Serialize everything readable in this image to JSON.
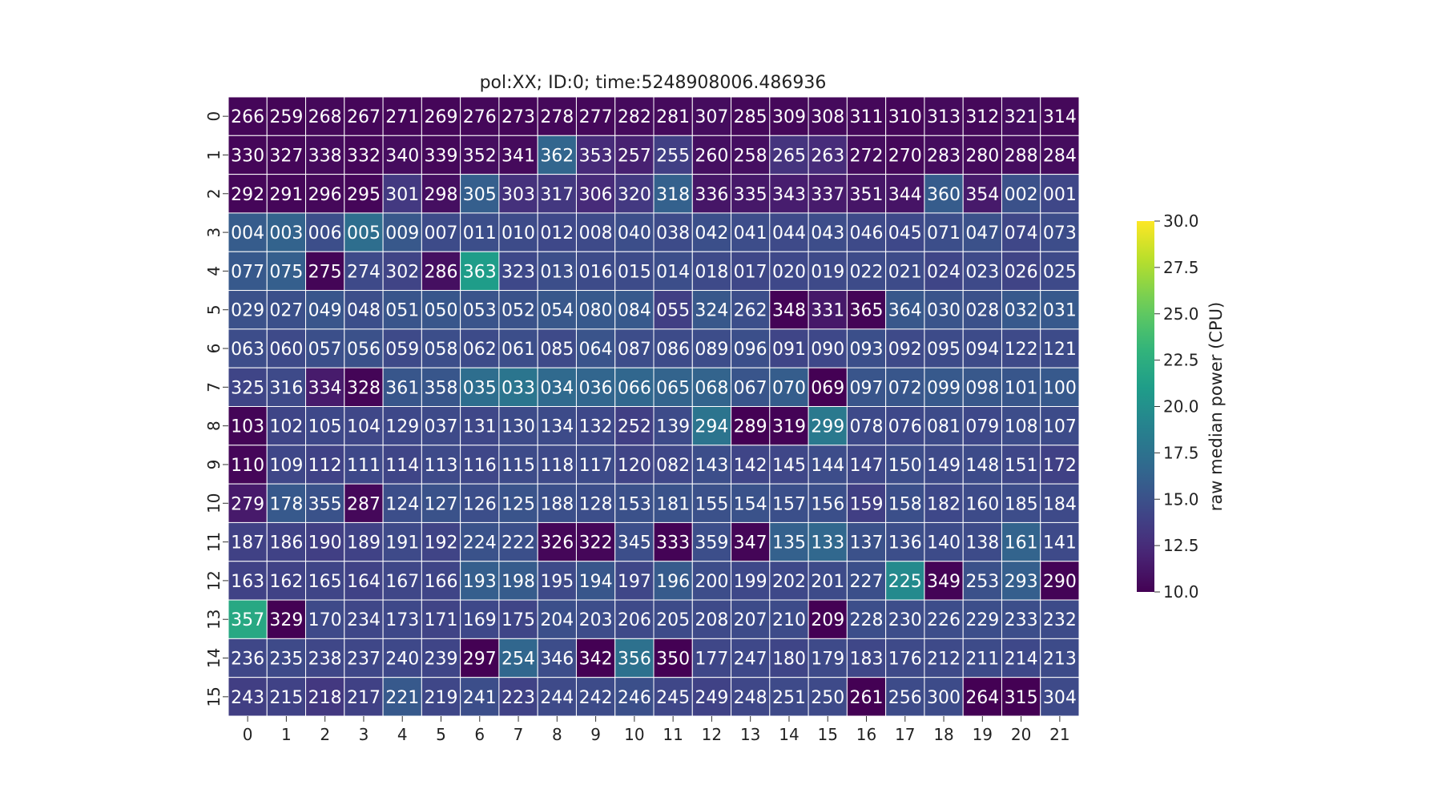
{
  "chart_data": {
    "type": "heatmap",
    "title": "pol:XX; ID:0; time:5248908006.486936",
    "x_tick_labels": [
      "0",
      "1",
      "2",
      "3",
      "4",
      "5",
      "6",
      "7",
      "8",
      "9",
      "10",
      "11",
      "12",
      "13",
      "14",
      "15",
      "16",
      "17",
      "18",
      "19",
      "20",
      "21"
    ],
    "y_tick_labels": [
      "0",
      "1",
      "2",
      "3",
      "4",
      "5",
      "6",
      "7",
      "8",
      "9",
      "10",
      "11",
      "12",
      "13",
      "14",
      "15"
    ],
    "cell_labels": [
      [
        "266",
        "259",
        "268",
        "267",
        "271",
        "269",
        "276",
        "273",
        "278",
        "277",
        "282",
        "281",
        "307",
        "285",
        "309",
        "308",
        "311",
        "310",
        "313",
        "312",
        "321",
        "314"
      ],
      [
        "330",
        "327",
        "338",
        "332",
        "340",
        "339",
        "352",
        "341",
        "362",
        "353",
        "257",
        "255",
        "260",
        "258",
        "265",
        "263",
        "272",
        "270",
        "283",
        "280",
        "288",
        "284"
      ],
      [
        "292",
        "291",
        "296",
        "295",
        "301",
        "298",
        "305",
        "303",
        "317",
        "306",
        "320",
        "318",
        "336",
        "335",
        "343",
        "337",
        "351",
        "344",
        "360",
        "354",
        "002",
        "001"
      ],
      [
        "004",
        "003",
        "006",
        "005",
        "009",
        "007",
        "011",
        "010",
        "012",
        "008",
        "040",
        "038",
        "042",
        "041",
        "044",
        "043",
        "046",
        "045",
        "071",
        "047",
        "074",
        "073"
      ],
      [
        "077",
        "075",
        "275",
        "274",
        "302",
        "286",
        "363",
        "323",
        "013",
        "016",
        "015",
        "014",
        "018",
        "017",
        "020",
        "019",
        "022",
        "021",
        "024",
        "023",
        "026",
        "025"
      ],
      [
        "029",
        "027",
        "049",
        "048",
        "051",
        "050",
        "053",
        "052",
        "054",
        "080",
        "084",
        "055",
        "324",
        "262",
        "348",
        "331",
        "365",
        "364",
        "030",
        "028",
        "032",
        "031"
      ],
      [
        "063",
        "060",
        "057",
        "056",
        "059",
        "058",
        "062",
        "061",
        "085",
        "064",
        "087",
        "086",
        "089",
        "096",
        "091",
        "090",
        "093",
        "092",
        "095",
        "094",
        "122",
        "121"
      ],
      [
        "325",
        "316",
        "334",
        "328",
        "361",
        "358",
        "035",
        "033",
        "034",
        "036",
        "066",
        "065",
        "068",
        "067",
        "070",
        "069",
        "097",
        "072",
        "099",
        "098",
        "101",
        "100"
      ],
      [
        "103",
        "102",
        "105",
        "104",
        "129",
        "037",
        "131",
        "130",
        "134",
        "132",
        "252",
        "139",
        "294",
        "289",
        "319",
        "299",
        "078",
        "076",
        "081",
        "079",
        "108",
        "107"
      ],
      [
        "110",
        "109",
        "112",
        "111",
        "114",
        "113",
        "116",
        "115",
        "118",
        "117",
        "120",
        "082",
        "143",
        "142",
        "145",
        "144",
        "147",
        "150",
        "149",
        "148",
        "151",
        "172"
      ],
      [
        "279",
        "178",
        "355",
        "287",
        "124",
        "127",
        "126",
        "125",
        "188",
        "128",
        "153",
        "181",
        "155",
        "154",
        "157",
        "156",
        "159",
        "158",
        "182",
        "160",
        "185",
        "184"
      ],
      [
        "187",
        "186",
        "190",
        "189",
        "191",
        "192",
        "224",
        "222",
        "326",
        "322",
        "345",
        "333",
        "359",
        "347",
        "135",
        "133",
        "137",
        "136",
        "140",
        "138",
        "161",
        "141"
      ],
      [
        "163",
        "162",
        "165",
        "164",
        "167",
        "166",
        "193",
        "198",
        "195",
        "194",
        "197",
        "196",
        "200",
        "199",
        "202",
        "201",
        "227",
        "225",
        "349",
        "253",
        "293",
        "290"
      ],
      [
        "357",
        "329",
        "170",
        "234",
        "173",
        "171",
        "169",
        "175",
        "204",
        "203",
        "206",
        "205",
        "208",
        "207",
        "210",
        "209",
        "228",
        "230",
        "226",
        "229",
        "233",
        "232"
      ],
      [
        "236",
        "235",
        "238",
        "237",
        "240",
        "239",
        "297",
        "254",
        "346",
        "342",
        "356",
        "350",
        "177",
        "247",
        "180",
        "179",
        "183",
        "176",
        "212",
        "211",
        "214",
        "213"
      ],
      [
        "243",
        "215",
        "218",
        "217",
        "221",
        "219",
        "241",
        "223",
        "244",
        "242",
        "246",
        "245",
        "249",
        "248",
        "251",
        "250",
        "261",
        "256",
        "300",
        "264",
        "315",
        "304"
      ]
    ],
    "values": [
      [
        10.3,
        10.2,
        10.4,
        10.3,
        10.3,
        10.3,
        10.4,
        10.3,
        10.4,
        10.4,
        10.5,
        10.5,
        10.6,
        10.4,
        10.4,
        10.5,
        10.4,
        10.3,
        10.5,
        10.4,
        10.7,
        10.4
      ],
      [
        10.3,
        10.3,
        10.5,
        10.3,
        10.6,
        10.4,
        10.7,
        10.5,
        16.5,
        12.4,
        11.8,
        13.8,
        10.8,
        10.8,
        13.0,
        12.5,
        10.6,
        10.4,
        10.6,
        10.5,
        10.7,
        10.6
      ],
      [
        10.3,
        10.3,
        10.4,
        10.3,
        13.4,
        10.8,
        16.0,
        12.8,
        13.3,
        12.4,
        13.4,
        16.2,
        11.2,
        11.3,
        11.6,
        11.5,
        11.2,
        11.1,
        15.8,
        11.4,
        15.0,
        14.3
      ],
      [
        15.8,
        16.3,
        14.8,
        17.2,
        15.5,
        14.6,
        14.8,
        14.6,
        14.4,
        14.5,
        14.8,
        14.6,
        14.9,
        14.7,
        14.5,
        14.7,
        14.5,
        14.4,
        14.8,
        15.0,
        14.3,
        14.7
      ],
      [
        15.6,
        16.0,
        10.2,
        14.5,
        14.1,
        10.8,
        21.0,
        14.4,
        14.8,
        14.6,
        14.6,
        14.8,
        14.5,
        14.3,
        14.4,
        14.5,
        14.6,
        14.6,
        14.2,
        14.5,
        14.1,
        14.5
      ],
      [
        15.0,
        14.9,
        15.3,
        14.8,
        15.3,
        15.4,
        15.2,
        15.1,
        15.5,
        15.6,
        15.6,
        13.8,
        15.5,
        14.8,
        10.1,
        11.3,
        10.2,
        15.5,
        15.2,
        15.0,
        15.6,
        15.6
      ],
      [
        14.7,
        14.5,
        14.9,
        15.0,
        14.5,
        14.8,
        14.6,
        14.8,
        14.5,
        15.2,
        14.7,
        14.6,
        14.7,
        14.9,
        14.2,
        14.4,
        14.9,
        14.5,
        14.6,
        14.6,
        14.5,
        14.6
      ],
      [
        14.2,
        14.5,
        11.5,
        10.2,
        15.4,
        15.4,
        17.2,
        17.8,
        16.8,
        16.5,
        16.6,
        16.4,
        16.4,
        15.3,
        15.9,
        10.0,
        15.3,
        15.4,
        15.6,
        15.5,
        15.4,
        15.6
      ],
      [
        10.2,
        14.2,
        14.4,
        14.3,
        14.4,
        14.5,
        14.3,
        14.6,
        14.6,
        14.4,
        13.8,
        14.6,
        17.7,
        10.0,
        10.1,
        18.1,
        14.5,
        14.4,
        14.6,
        14.4,
        14.7,
        14.6
      ],
      [
        10.3,
        14.3,
        14.0,
        14.4,
        14.2,
        14.5,
        14.3,
        14.6,
        14.5,
        14.6,
        14.1,
        14.3,
        14.8,
        14.2,
        14.3,
        14.7,
        14.3,
        14.7,
        14.5,
        14.6,
        14.3,
        13.9
      ],
      [
        11.4,
        15.6,
        15.1,
        10.4,
        14.8,
        15.1,
        14.8,
        15.2,
        14.9,
        14.8,
        15.0,
        15.1,
        15.0,
        15.1,
        14.9,
        14.9,
        13.8,
        14.9,
        14.4,
        14.6,
        14.7,
        14.5
      ],
      [
        13.9,
        14.0,
        13.8,
        14.0,
        14.5,
        14.1,
        15.1,
        14.9,
        10.3,
        10.3,
        14.8,
        10.1,
        14.8,
        10.2,
        16.2,
        16.7,
        15.0,
        14.8,
        14.6,
        14.6,
        16.4,
        14.5
      ],
      [
        14.0,
        14.0,
        14.2,
        14.0,
        14.3,
        14.2,
        16.0,
        15.8,
        14.5,
        15.4,
        14.3,
        15.7,
        14.7,
        14.4,
        14.4,
        14.6,
        14.9,
        19.5,
        10.1,
        15.0,
        16.0,
        10.1
      ],
      [
        22.0,
        10.0,
        14.5,
        14.3,
        14.4,
        14.1,
        14.4,
        14.2,
        14.9,
        14.7,
        14.5,
        14.6,
        14.5,
        14.6,
        14.6,
        10.0,
        14.8,
        14.7,
        14.7,
        14.8,
        14.8,
        14.6
      ],
      [
        14.3,
        14.5,
        14.3,
        14.3,
        14.4,
        14.2,
        10.0,
        16.6,
        14.7,
        10.0,
        17.4,
        10.0,
        14.3,
        14.4,
        14.2,
        14.5,
        14.3,
        14.5,
        14.5,
        14.6,
        14.4,
        14.6
      ],
      [
        13.7,
        14.0,
        13.3,
        13.9,
        15.6,
        14.3,
        14.8,
        14.0,
        14.5,
        14.6,
        14.9,
        14.3,
        14.0,
        14.3,
        14.5,
        14.5,
        10.0,
        14.6,
        14.6,
        10.0,
        10.0,
        14.5
      ]
    ],
    "colormap": "viridis",
    "vmin": 10.0,
    "vmax": 30.0,
    "colorbar": {
      "label": "raw median power (CPU)",
      "ticks": [
        "10.0",
        "12.5",
        "15.0",
        "17.5",
        "20.0",
        "22.5",
        "25.0",
        "27.5",
        "30.0"
      ],
      "tick_values": [
        10.0,
        12.5,
        15.0,
        17.5,
        20.0,
        22.5,
        25.0,
        27.5,
        30.0
      ]
    },
    "grid": true
  }
}
